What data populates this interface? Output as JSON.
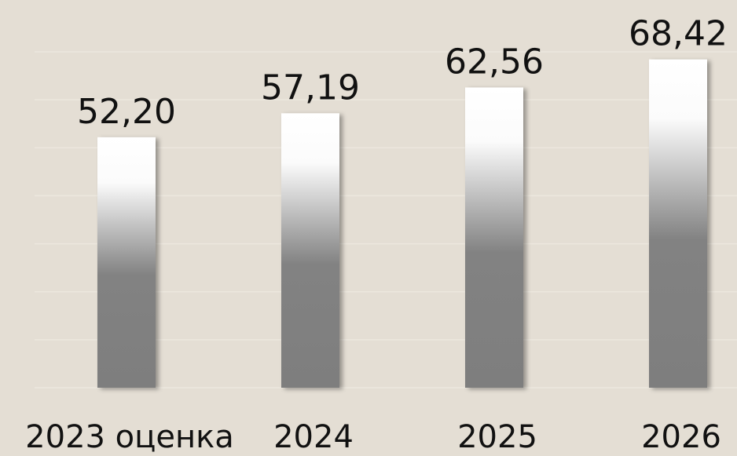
{
  "chart_data": {
    "type": "bar",
    "categories": [
      "2023 оценка",
      "2024",
      "2025",
      "2026"
    ],
    "values": [
      52.2,
      57.19,
      62.56,
      68.42
    ],
    "value_labels": [
      "52,20",
      "57,19",
      "62,56",
      "68,42"
    ],
    "ylim": [
      0,
      70
    ],
    "yticks": [
      0,
      10,
      20,
      30,
      40,
      50,
      60,
      70
    ],
    "grid": true
  }
}
